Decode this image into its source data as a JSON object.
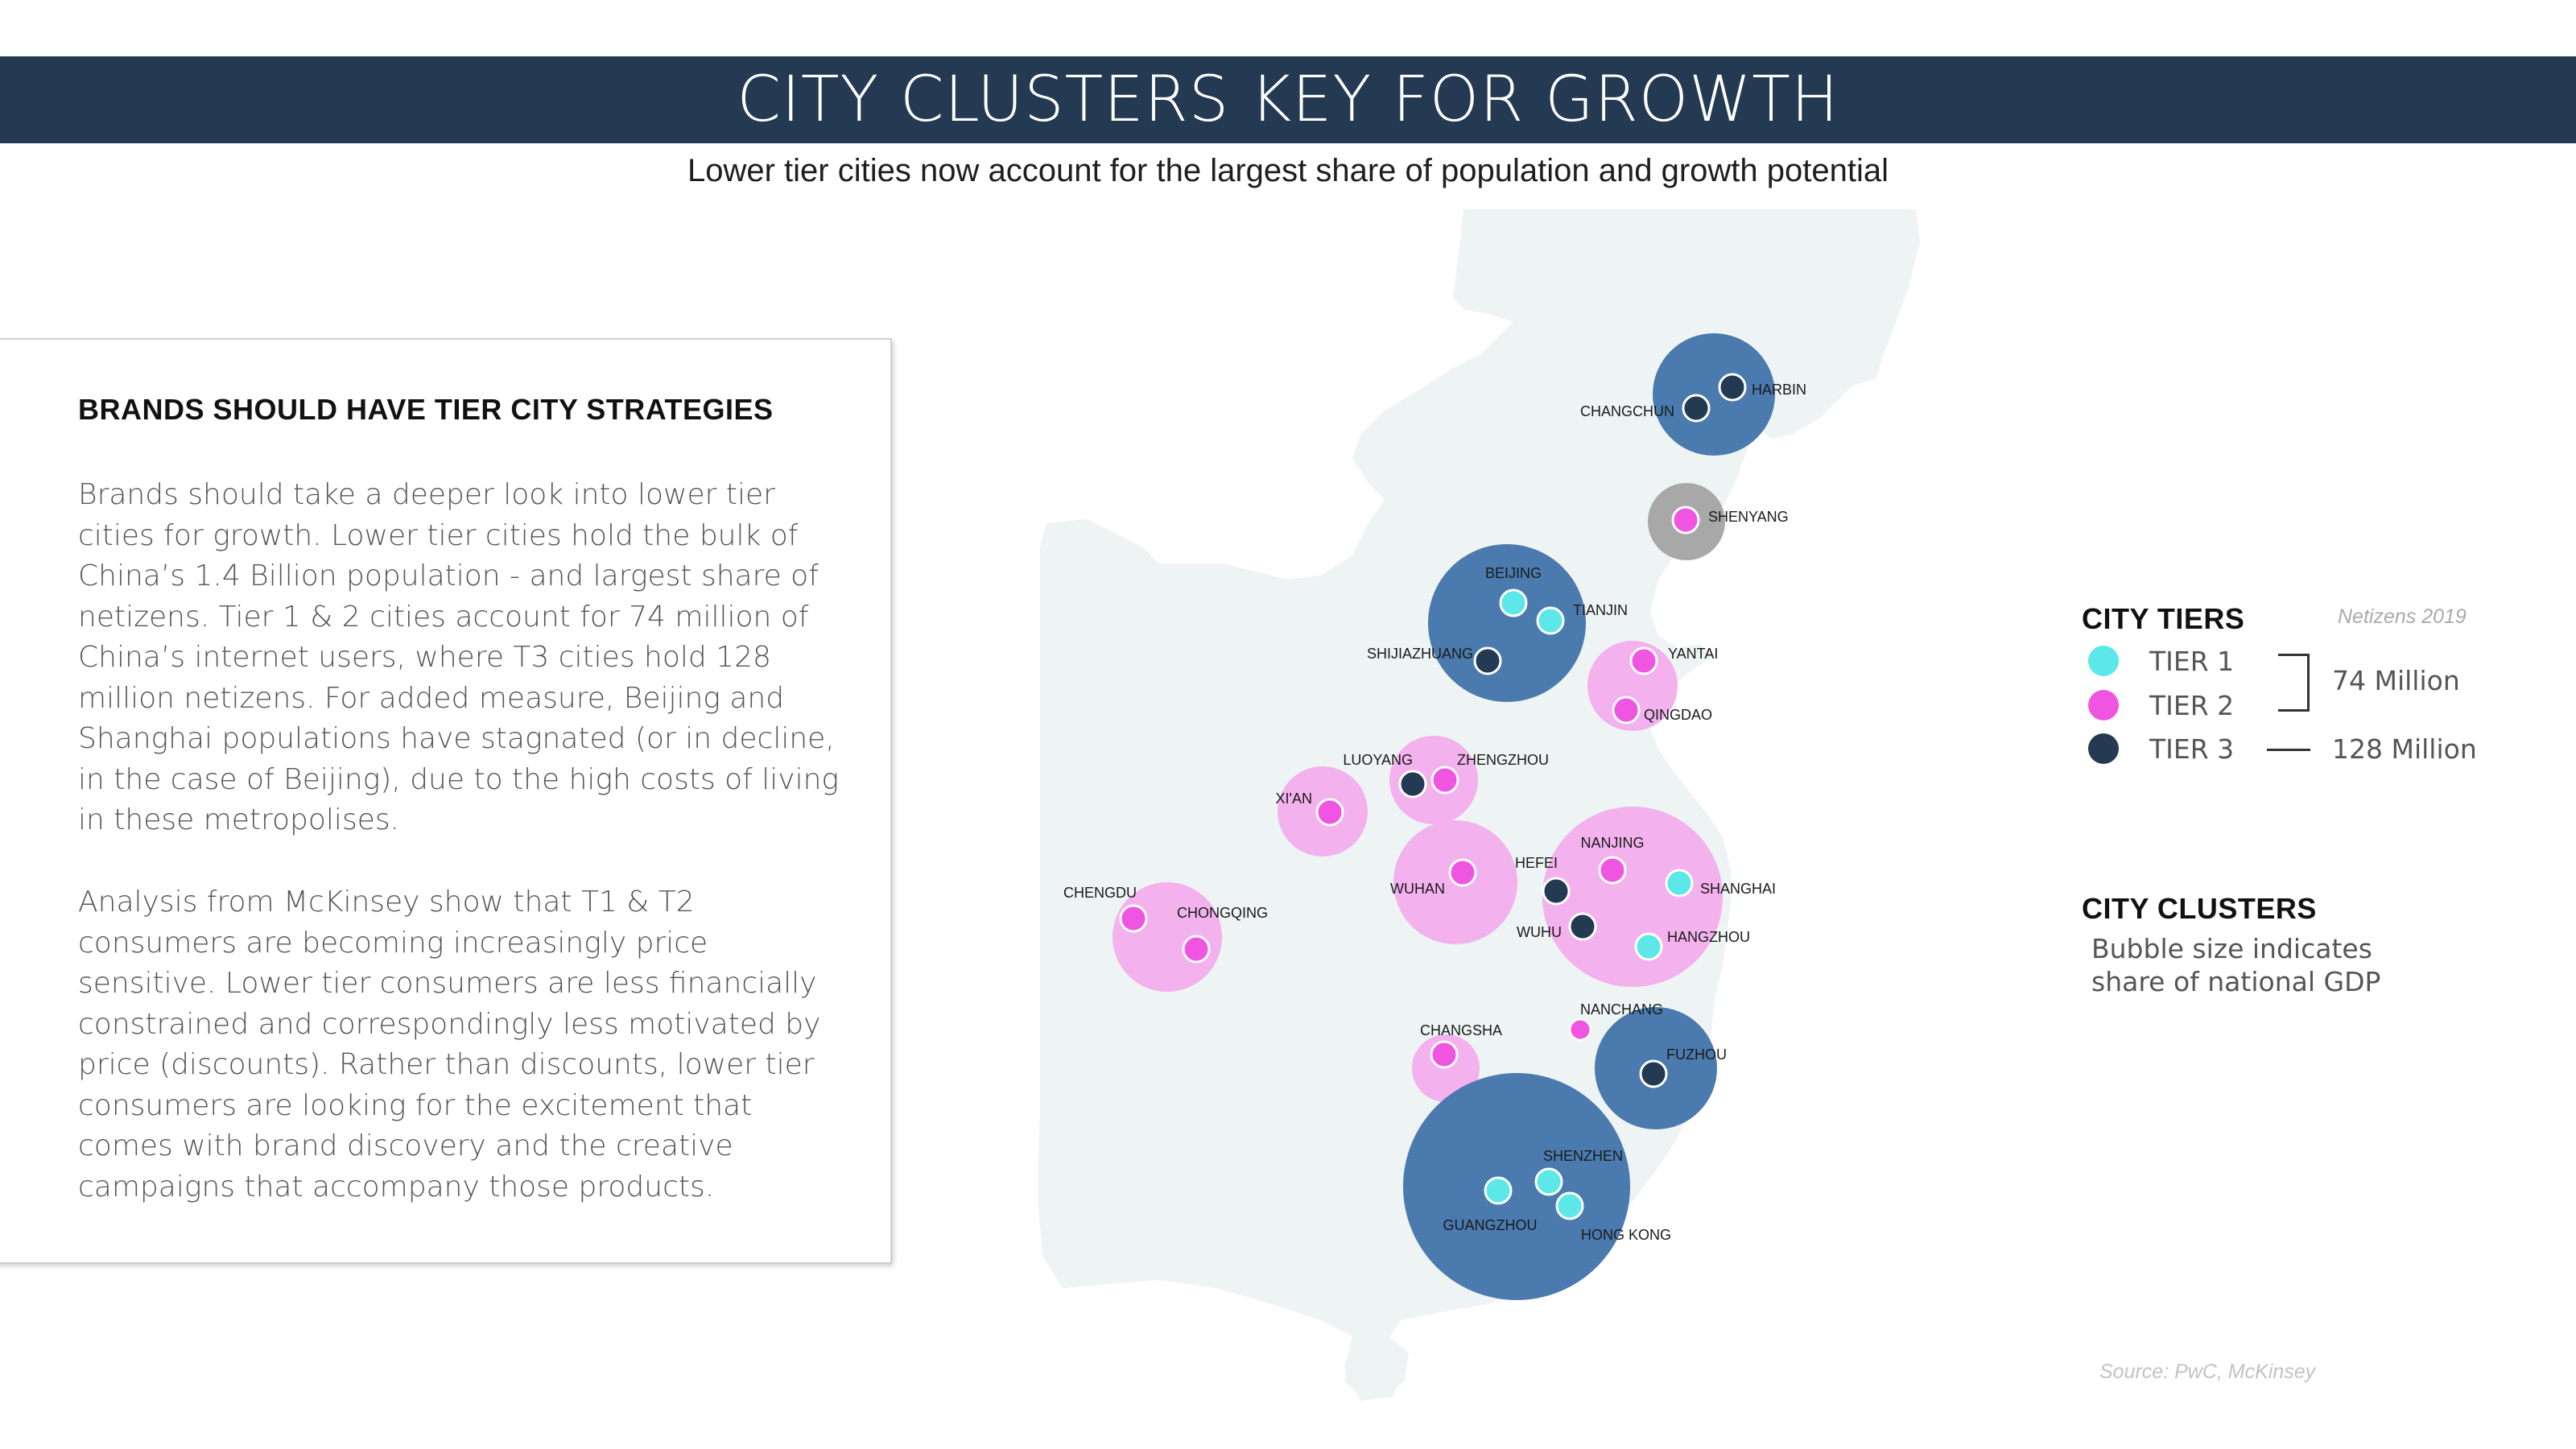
{
  "header": {
    "title": "CITY CLUSTERS KEY FOR GROWTH",
    "subtitle": "Lower tier cities now account for the largest share of population and growth potential"
  },
  "card": {
    "heading": "BRANDS SHOULD HAVE TIER CITY STRATEGIES",
    "paragraph1": "Brands should take a deeper look into lower tier cities for growth. Lower tier cities hold the bulk of China’s 1.4 Billion population - and largest share of netizens. Tier 1 & 2 cities account for 74 million of China’s internet users, where T3 cities hold 128 million netizens. For added measure, Beijing and Shanghai populations have stagnated (or in decline, in the case of Beijing), due to the high costs of living in these metropolises.",
    "paragraph2": "Analysis from McKinsey show that T1 & T2 consumers are becoming increasingly price sensitive. Lower tier consumers are less financially constrained and correspondingly less motivated by price (discounts). Rather than discounts, lower tier consumers are looking for the excitement that comes with brand discovery and the creative campaigns that accompany those products."
  },
  "legend": {
    "tiers_title": "CITY TIERS",
    "tiers_note": "Netizens 2019",
    "tiers": [
      {
        "label": "TIER 1",
        "color": "#5ce8e8"
      },
      {
        "label": "TIER 2",
        "color": "#ef55e0"
      },
      {
        "label": "TIER 3",
        "color": "#243a52"
      }
    ],
    "tier12_value": "74 Million",
    "tier3_value": "128 Million",
    "clusters_title": "CITY CLUSTERS",
    "clusters_desc": "Bubble size indicates share of national GDP"
  },
  "source": "Source: PwC, McKinsey",
  "colors": {
    "header_bg": "#243a52",
    "map_fill": "#eef3f3",
    "cluster_blue": "#4a7aae",
    "cluster_pink": "#f3b1ee",
    "cluster_grey": "#a8a8a8",
    "tier1": "#5ce8e8",
    "tier2": "#ef55e0",
    "tier3": "#243a52"
  },
  "map": {
    "cities": [
      {
        "name": "HARBIN",
        "tier": 3
      },
      {
        "name": "CHANGCHUN",
        "tier": 3
      },
      {
        "name": "SHENYANG",
        "tier": 2
      },
      {
        "name": "BEIJING",
        "tier": 1
      },
      {
        "name": "TIANJIN",
        "tier": 1
      },
      {
        "name": "SHIJIAZHUANG",
        "tier": 3
      },
      {
        "name": "YANTAI",
        "tier": 2
      },
      {
        "name": "QINGDAO",
        "tier": 2
      },
      {
        "name": "LUOYANG",
        "tier": 3
      },
      {
        "name": "ZHENGZHOU",
        "tier": 2
      },
      {
        "name": "XI'AN",
        "tier": 2
      },
      {
        "name": "NANJING",
        "tier": 2
      },
      {
        "name": "SHANGHAI",
        "tier": 1
      },
      {
        "name": "HEFEI",
        "tier": 3
      },
      {
        "name": "WUHAN",
        "tier": 2
      },
      {
        "name": "WUHU",
        "tier": 3
      },
      {
        "name": "HANGZHOU",
        "tier": 1
      },
      {
        "name": "CHENGDU",
        "tier": 2
      },
      {
        "name": "CHONGQING",
        "tier": 2
      },
      {
        "name": "NANCHANG",
        "tier": 2
      },
      {
        "name": "CHANGSHA",
        "tier": 2
      },
      {
        "name": "FUZHOU",
        "tier": 3
      },
      {
        "name": "SHENZHEN",
        "tier": 1
      },
      {
        "name": "GUANGZHOU",
        "tier": 1
      },
      {
        "name": "HONG KONG",
        "tier": 1
      }
    ]
  }
}
